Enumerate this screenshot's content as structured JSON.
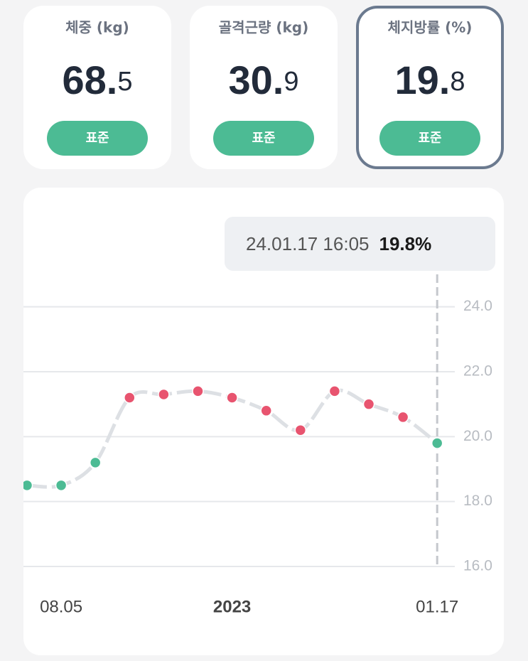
{
  "cards": [
    {
      "label": "체중 (kg)",
      "value_main": "68.",
      "value_decimal": "5",
      "status": "표준"
    },
    {
      "label": "골격근량 (kg)",
      "value_main": "30.",
      "value_decimal": "9",
      "status": "표준"
    },
    {
      "label": "체지방률 (%)",
      "value_main": "19.",
      "value_decimal": "8",
      "status": "표준"
    }
  ],
  "selected_card": 2,
  "chart_data": {
    "type": "line",
    "categories": [
      null,
      "08.05",
      null,
      null,
      null,
      null,
      "2023",
      null,
      null,
      null,
      null,
      null,
      "01.17"
    ],
    "values": [
      18.5,
      18.5,
      19.2,
      21.2,
      21.3,
      21.4,
      21.2,
      20.8,
      20.2,
      21.4,
      21.0,
      20.6,
      19.8
    ],
    "point_colors": [
      "#4cbb94",
      "#4cbb94",
      "#4cbb94",
      "#e8546f",
      "#e8546f",
      "#e8546f",
      "#e8546f",
      "#e8546f",
      "#e8546f",
      "#e8546f",
      "#e8546f",
      "#e8546f",
      "#4cbb94"
    ],
    "line_color": "#dde0e4",
    "ylim": [
      16,
      25
    ],
    "yticks": [
      {
        "value": 16,
        "label": "16.0"
      },
      {
        "value": 18,
        "label": "18.0"
      },
      {
        "value": 20,
        "label": "20.0"
      },
      {
        "value": 22,
        "label": "22.0"
      },
      {
        "value": 24,
        "label": "24.0"
      }
    ],
    "grid": true,
    "tooltip": {
      "label": "24.01.17 16:05",
      "value_label": "19.8%"
    }
  }
}
